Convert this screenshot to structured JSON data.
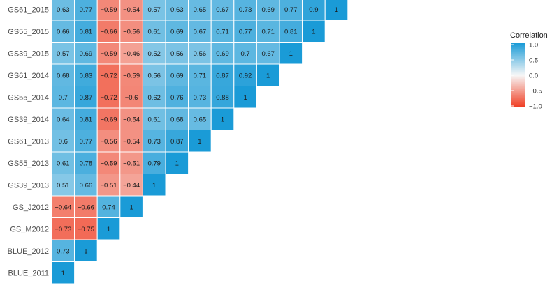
{
  "chart_data": {
    "type": "heatmap",
    "rows": [
      "GS61_2015",
      "GS55_2015",
      "GS39_2015",
      "GS61_2014",
      "GS55_2014",
      "GS39_2014",
      "GS61_2013",
      "GS55_2013",
      "GS39_2013",
      "GS_J2012",
      "GS_M2012",
      "BLUE_2012",
      "BLUE_2011"
    ],
    "values": [
      [
        0.63,
        0.77,
        -0.59,
        -0.54,
        0.57,
        0.63,
        0.65,
        0.67,
        0.73,
        0.69,
        0.77,
        0.9,
        1
      ],
      [
        0.66,
        0.81,
        -0.66,
        -0.56,
        0.61,
        0.69,
        0.67,
        0.71,
        0.77,
        0.71,
        0.81,
        1
      ],
      [
        0.57,
        0.69,
        -0.59,
        -0.46,
        0.52,
        0.56,
        0.56,
        0.69,
        0.7,
        0.67,
        1
      ],
      [
        0.68,
        0.83,
        -0.72,
        -0.59,
        0.56,
        0.69,
        0.71,
        0.87,
        0.92,
        1
      ],
      [
        0.7,
        0.87,
        -0.72,
        -0.6,
        0.62,
        0.76,
        0.73,
        0.88,
        1
      ],
      [
        0.64,
        0.81,
        -0.69,
        -0.54,
        0.61,
        0.68,
        0.65,
        1
      ],
      [
        0.6,
        0.77,
        -0.56,
        -0.54,
        0.73,
        0.87,
        1
      ],
      [
        0.61,
        0.78,
        -0.59,
        -0.51,
        0.79,
        1
      ],
      [
        0.51,
        0.66,
        -0.51,
        -0.44,
        1
      ],
      [
        -0.64,
        -0.66,
        0.74,
        1
      ],
      [
        -0.73,
        -0.75,
        1
      ],
      [
        0.73,
        1
      ],
      [
        1
      ]
    ],
    "legend": {
      "title": "Correlation",
      "ticks": [
        "1.0",
        "0.5",
        "0.0",
        "−0.5",
        "−1.0"
      ],
      "range": [
        -1,
        1
      ],
      "placement": "right"
    },
    "colors": {
      "positive": "#1a9bd7",
      "neutral": "#f7f7f7",
      "negative": "#f03b20"
    }
  }
}
